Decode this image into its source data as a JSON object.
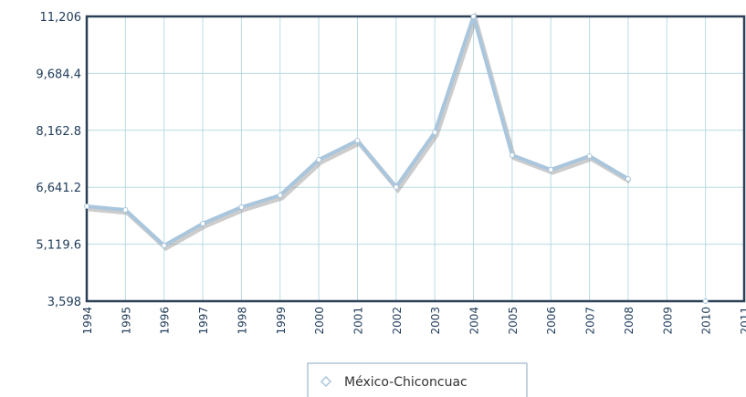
{
  "chart_data": {
    "type": "line",
    "categories": [
      "1994",
      "1995",
      "1996",
      "1997",
      "1998",
      "1999",
      "2000",
      "2001",
      "2002",
      "2003",
      "2004",
      "2005",
      "2006",
      "2007",
      "2008",
      "2009",
      "2010",
      "2011"
    ],
    "series": [
      {
        "name": "México-Chiconcuac",
        "color": "#a9c6dd",
        "values": [
          6135,
          6037,
          5086,
          5671,
          6110,
          6427,
          7378,
          7890,
          6647,
          8110,
          11206,
          7500,
          7110,
          7475,
          6866,
          null,
          3598,
          null
        ]
      }
    ],
    "ylim": [
      3598,
      11206
    ],
    "yticks": [
      {
        "value": 3598,
        "label": "3,598"
      },
      {
        "value": 5119.6,
        "label": "5,119.6"
      },
      {
        "value": 6641.2,
        "label": "6,641.2"
      },
      {
        "value": 8162.8,
        "label": "8,162.8"
      },
      {
        "value": 9684.4,
        "label": "9,684.4"
      },
      {
        "value": 11206,
        "label": "11,206"
      }
    ],
    "grid": true
  }
}
